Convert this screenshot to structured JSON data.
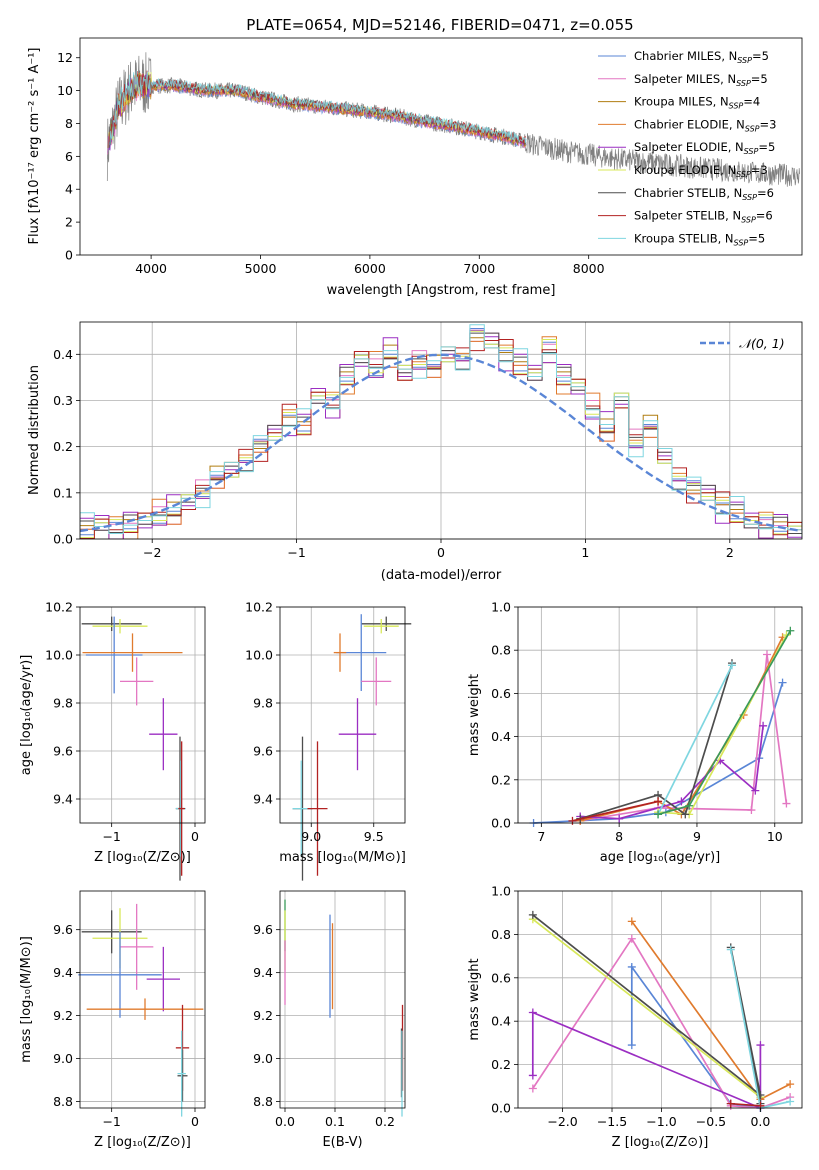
{
  "chart_data": [
    {
      "type": "line",
      "title": "PLATE=0654, MJD=52146, FIBERID=0471, z=0.055",
      "xlabel": "wavelength [Angstrom, rest frame]",
      "ylabel": "Flux [fλ10⁻¹⁷ erg cm⁻² s⁻¹ A⁻¹]",
      "xlim": [
        3350,
        9950
      ],
      "ylim": [
        0,
        13.2
      ],
      "xticks": [
        "4000",
        "5000",
        "6000",
        "7000",
        "8000"
      ],
      "xtick_values": [
        4000,
        5000,
        6000,
        7000,
        8000
      ],
      "yticks": [
        "0",
        "2",
        "4",
        "6",
        "8",
        "10",
        "12"
      ],
      "ytick_values": [
        0,
        2,
        4,
        6,
        8,
        10,
        12
      ],
      "grid": false,
      "legend_position": "top-right",
      "data_series": {
        "name": "data",
        "color": "#808080",
        "x_start": 3600,
        "x_end": 9930,
        "points": [
          [
            3600,
            6.5
          ],
          [
            3700,
            9.0
          ],
          [
            3800,
            10.0
          ],
          [
            3900,
            10.4
          ],
          [
            4000,
            10.3
          ],
          [
            4200,
            10.3
          ],
          [
            4500,
            10.0
          ],
          [
            4800,
            10.0
          ],
          [
            5000,
            9.6
          ],
          [
            5300,
            9.2
          ],
          [
            5600,
            9.0
          ],
          [
            6000,
            8.7
          ],
          [
            6300,
            8.4
          ],
          [
            6500,
            8.1
          ],
          [
            6700,
            7.9
          ],
          [
            7000,
            7.5
          ],
          [
            7300,
            7.1
          ],
          [
            7500,
            6.7
          ],
          [
            7800,
            6.3
          ],
          [
            8000,
            6.1
          ],
          [
            8300,
            5.8
          ],
          [
            8600,
            5.6
          ],
          [
            9000,
            5.3
          ],
          [
            9500,
            5.0
          ],
          [
            9930,
            4.8
          ]
        ]
      },
      "legend": [
        {
          "label": "Chabrier MILES, N",
          "sub": "SSP",
          "suffix": "=5",
          "color": "#5a86d6"
        },
        {
          "label": "Salpeter MILES, N",
          "sub": "SSP",
          "suffix": "=5",
          "color": "#e377c2"
        },
        {
          "label": "Kroupa MILES, N",
          "sub": "SSP",
          "suffix": "=4",
          "color": "#b07d10"
        },
        {
          "label": "Chabrier ELODIE, N",
          "sub": "SSP",
          "suffix": "=3",
          "color": "#e07b2e"
        },
        {
          "label": "Salpeter ELODIE, N",
          "sub": "SSP",
          "suffix": "=5",
          "color": "#9b2ec2"
        },
        {
          "label": "Kroupa ELODIE, N",
          "sub": "SSP",
          "suffix": "=3",
          "color": "#d8e85a"
        },
        {
          "label": "Chabrier STELIB, N",
          "sub": "SSP",
          "suffix": "=6",
          "color": "#4d4d4d"
        },
        {
          "label": "Salpeter STELIB, N",
          "sub": "SSP",
          "suffix": "=6",
          "color": "#b22222"
        },
        {
          "label": "Kroupa STELIB, N",
          "sub": "SSP",
          "suffix": "=5",
          "color": "#7fd6e0"
        }
      ]
    },
    {
      "type": "bar",
      "xlabel": "(data-model)/error",
      "ylabel": "Normed distribution",
      "xlim": [
        -2.5,
        2.5
      ],
      "ylim": [
        0,
        0.47
      ],
      "xticks": [
        "−2",
        "−1",
        "0",
        "1",
        "2"
      ],
      "xtick_values": [
        -2,
        -1,
        0,
        1,
        2
      ],
      "yticks": [
        "0.0",
        "0.1",
        "0.2",
        "0.3",
        "0.4"
      ],
      "ytick_values": [
        0,
        0.1,
        0.2,
        0.3,
        0.4
      ],
      "grid": true,
      "legend_position": "top-right",
      "legend": [
        {
          "label": "𝒩(0, 1)",
          "style": "dashed",
          "color": "#5a86d6"
        }
      ],
      "reference_curve": "normal(0,1) pdf",
      "bin_width": 0.1,
      "series": [
        {
          "name": "",
          "color": "#5a86d6",
          "offset": 0.0
        },
        {
          "name": "",
          "color": "#e377c2",
          "offset": 0.012
        },
        {
          "name": "",
          "color": "#b07d10",
          "offset": -0.012
        },
        {
          "name": "",
          "color": "#e07b2e",
          "offset": 0.02
        },
        {
          "name": "",
          "color": "#9b2ec2",
          "offset": -0.02
        },
        {
          "name": "",
          "color": "#d8e85a",
          "offset": 0.006
        },
        {
          "name": "",
          "color": "#4d4d4d",
          "offset": -0.006
        },
        {
          "name": "",
          "color": "#b22222",
          "offset": 0.016
        },
        {
          "name": "",
          "color": "#7fd6e0",
          "offset": -0.016
        }
      ],
      "base_values": [
        0.025,
        0.035,
        0.02,
        0.03,
        0.04,
        0.05,
        0.06,
        0.08,
        0.1,
        0.13,
        0.15,
        0.17,
        0.2,
        0.23,
        0.26,
        0.25,
        0.31,
        0.29,
        0.35,
        0.39,
        0.37,
        0.4,
        0.36,
        0.38,
        0.37,
        0.4,
        0.39,
        0.44,
        0.43,
        0.4,
        0.38,
        0.36,
        0.41,
        0.35,
        0.33,
        0.28,
        0.24,
        0.3,
        0.21,
        0.24,
        0.18,
        0.13,
        0.11,
        0.1,
        0.07,
        0.06,
        0.04,
        0.03,
        0.025,
        0.02
      ]
    },
    {
      "type": "scatter",
      "xlabel": "Z [log₁₀(Z/Z⊙)]",
      "ylabel": "age  [log₁₀(age/yr)]",
      "xlim": [
        -1.38,
        0.12
      ],
      "ylim": [
        9.3,
        10.2
      ],
      "xticks": [
        "−1",
        "0"
      ],
      "xtick_values": [
        -1,
        0
      ],
      "yticks": [
        "9.4",
        "9.6",
        "9.8",
        "10.0",
        "10.2"
      ],
      "ytick_values": [
        9.4,
        9.6,
        9.8,
        10.0,
        10.2
      ],
      "grid": true,
      "errorbars": [
        {
          "x": -1.0,
          "y": 10.13,
          "xerr": 0.36,
          "yerr": 0.03,
          "color": "#4d4d4d"
        },
        {
          "x": -0.9,
          "y": 10.12,
          "xerr": 0.33,
          "yerr": 0.03,
          "color": "#d8e85a"
        },
        {
          "x": -0.97,
          "y": 10.0,
          "xerr": 0.34,
          "yerr": 0.16,
          "color": "#5a86d6"
        },
        {
          "x": -0.75,
          "y": 10.01,
          "xerr": 0.6,
          "yerr": 0.08,
          "color": "#e07b2e"
        },
        {
          "x": -0.7,
          "y": 9.89,
          "xerr": 0.2,
          "yerr": 0.1,
          "color": "#e377c2"
        },
        {
          "x": -0.38,
          "y": 9.67,
          "xerr": 0.17,
          "yerr": 0.15,
          "color": "#9b2ec2"
        },
        {
          "x": -0.18,
          "y": 9.36,
          "xerr": 0.05,
          "yerr": 0.3,
          "color": "#4d4d4d"
        },
        {
          "x": -0.17,
          "y": 9.36,
          "xerr": 0.06,
          "yerr": 0.2,
          "color": "#7fd6e0"
        },
        {
          "x": -0.16,
          "y": 9.36,
          "xerr": 0.04,
          "yerr": 0.28,
          "color": "#b22222"
        }
      ]
    },
    {
      "type": "scatter",
      "xlabel": "mass [log₁₀(M/M⊙)]",
      "ylabel": "",
      "xlim": [
        8.75,
        9.75
      ],
      "ylim": [
        9.3,
        10.2
      ],
      "xticks": [
        "9.0",
        "9.5"
      ],
      "xtick_values": [
        9.0,
        9.5
      ],
      "yticks": [
        "9.4",
        "9.6",
        "9.8",
        "10.0",
        "10.2"
      ],
      "ytick_values": [
        9.4,
        9.6,
        9.8,
        10.0,
        10.2
      ],
      "grid": true,
      "errorbars": [
        {
          "x": 9.6,
          "y": 10.13,
          "xerr": 0.2,
          "yerr": 0.03,
          "color": "#4d4d4d"
        },
        {
          "x": 9.56,
          "y": 10.12,
          "xerr": 0.14,
          "yerr": 0.03,
          "color": "#d8e85a"
        },
        {
          "x": 9.4,
          "y": 10.01,
          "xerr": 0.2,
          "yerr": 0.16,
          "color": "#5a86d6"
        },
        {
          "x": 9.23,
          "y": 10.01,
          "xerr": 0.05,
          "yerr": 0.08,
          "color": "#e07b2e"
        },
        {
          "x": 9.52,
          "y": 9.89,
          "xerr": 0.12,
          "yerr": 0.1,
          "color": "#e377c2"
        },
        {
          "x": 9.37,
          "y": 9.67,
          "xerr": 0.15,
          "yerr": 0.15,
          "color": "#9b2ec2"
        },
        {
          "x": 8.93,
          "y": 9.36,
          "xerr": 0.08,
          "yerr": 0.3,
          "color": "#4d4d4d"
        },
        {
          "x": 8.92,
          "y": 9.36,
          "xerr": 0.07,
          "yerr": 0.2,
          "color": "#7fd6e0"
        },
        {
          "x": 9.05,
          "y": 9.36,
          "xerr": 0.08,
          "yerr": 0.28,
          "color": "#b22222"
        }
      ]
    },
    {
      "type": "line",
      "xlabel": "age  [log₁₀(age/yr)]",
      "ylabel": "mass weight",
      "xlim": [
        6.7,
        10.35
      ],
      "ylim": [
        0,
        1.0
      ],
      "xticks": [
        "7",
        "8",
        "9",
        "10"
      ],
      "xtick_values": [
        7,
        8,
        9,
        10
      ],
      "yticks": [
        "0.0",
        "0.2",
        "0.4",
        "0.6",
        "0.8",
        "1.0"
      ],
      "ytick_values": [
        0,
        0.2,
        0.4,
        0.6,
        0.8,
        1.0
      ],
      "grid": true,
      "series": [
        {
          "name": "",
          "color": "#5a86d6",
          "x": [
            6.9,
            8.0,
            8.6,
            9.8,
            10.1
          ],
          "y": [
            0.0,
            0.02,
            0.05,
            0.3,
            0.65
          ]
        },
        {
          "name": "",
          "color": "#e377c2",
          "x": [
            7.5,
            8.5,
            9.7,
            9.9,
            10.15
          ],
          "y": [
            0.01,
            0.07,
            0.06,
            0.78,
            0.09
          ]
        },
        {
          "name": "",
          "color": "#e07b2e",
          "x": [
            7.5,
            8.5,
            8.8,
            9.6,
            10.1
          ],
          "y": [
            0.01,
            0.1,
            0.04,
            0.5,
            0.86
          ]
        },
        {
          "name": "",
          "color": "#9b2ec2",
          "x": [
            7.5,
            8.0,
            8.8,
            9.3,
            9.75,
            9.85
          ],
          "y": [
            0.03,
            0.02,
            0.1,
            0.29,
            0.15,
            0.45
          ]
        },
        {
          "name": "",
          "color": "#d8e85a",
          "x": [
            8.5,
            8.9,
            10.15
          ],
          "y": [
            0.05,
            0.04,
            0.87
          ]
        },
        {
          "name": "",
          "color": "#4d4d4d",
          "x": [
            7.5,
            8.5,
            8.85,
            9.45
          ],
          "y": [
            0.02,
            0.13,
            0.04,
            0.74
          ]
        },
        {
          "name": "",
          "color": "#b22222",
          "x": [
            7.4,
            8.5
          ],
          "y": [
            0.01,
            0.1
          ]
        },
        {
          "name": "",
          "color": "#7fd6e0",
          "x": [
            8.5,
            9.45
          ],
          "y": [
            0.04,
            0.73
          ]
        },
        {
          "name": "",
          "color": "#3a9a5a",
          "x": [
            8.5,
            8.9,
            10.2
          ],
          "y": [
            0.04,
            0.08,
            0.89
          ]
        }
      ]
    },
    {
      "type": "scatter",
      "xlabel": "Z [log₁₀(Z/Z⊙)]",
      "ylabel": "mass [log₁₀(M/M⊙)]",
      "xlim": [
        -1.38,
        0.12
      ],
      "ylim": [
        8.77,
        9.78
      ],
      "xticks": [
        "−1",
        "0"
      ],
      "xtick_values": [
        -1,
        0
      ],
      "yticks": [
        "8.8",
        "9.0",
        "9.2",
        "9.4",
        "9.6"
      ],
      "ytick_values": [
        8.8,
        9.0,
        9.2,
        9.4,
        9.6
      ],
      "grid": true,
      "errorbars": [
        {
          "x": -1.0,
          "y": 9.59,
          "xerr": 0.36,
          "yerr": 0.1,
          "color": "#4d4d4d"
        },
        {
          "x": -0.9,
          "y": 9.56,
          "xerr": 0.33,
          "yerr": 0.14,
          "color": "#d8e85a"
        },
        {
          "x": -0.7,
          "y": 9.52,
          "xerr": 0.2,
          "yerr": 0.2,
          "color": "#e377c2"
        },
        {
          "x": -0.9,
          "y": 9.39,
          "xerr": 0.5,
          "yerr": 0.2,
          "color": "#5a86d6"
        },
        {
          "x": -0.38,
          "y": 9.37,
          "xerr": 0.2,
          "yerr": 0.15,
          "color": "#9b2ec2"
        },
        {
          "x": -0.6,
          "y": 9.23,
          "xerr": 0.7,
          "yerr": 0.05,
          "color": "#e07b2e"
        },
        {
          "x": -0.15,
          "y": 9.05,
          "xerr": 0.08,
          "yerr": 0.2,
          "color": "#b22222"
        },
        {
          "x": -0.15,
          "y": 8.92,
          "xerr": 0.06,
          "yerr": 0.12,
          "color": "#4d4d4d"
        },
        {
          "x": -0.16,
          "y": 8.93,
          "xerr": 0.05,
          "yerr": 0.2,
          "color": "#7fd6e0"
        }
      ]
    },
    {
      "type": "scatter",
      "xlabel": "E(B-V)",
      "ylabel": "",
      "xlim": [
        -0.01,
        0.24
      ],
      "ylim": [
        8.77,
        9.78
      ],
      "xticks": [
        "0.0",
        "0.1",
        "0.2"
      ],
      "xtick_values": [
        0,
        0.1,
        0.2
      ],
      "yticks": [
        "8.8",
        "9.0",
        "9.2",
        "9.4",
        "9.6"
      ],
      "ytick_values": [
        8.8,
        9.0,
        9.2,
        9.4,
        9.6
      ],
      "grid": true,
      "errorbars": [
        {
          "x": 0.0,
          "y": 9.62,
          "xerr": 0,
          "yerr": 0.12,
          "color": "#3a9a5a"
        },
        {
          "x": 0.0,
          "y": 9.55,
          "xerr": 0,
          "yerr": 0.14,
          "color": "#d8e85a"
        },
        {
          "x": 0.0,
          "y": 9.4,
          "xerr": 0,
          "yerr": 0.15,
          "color": "#e377c2"
        },
        {
          "x": 0.09,
          "y": 9.43,
          "xerr": 0,
          "yerr": 0.24,
          "color": "#5a86d6"
        },
        {
          "x": 0.095,
          "y": 9.43,
          "xerr": 0,
          "yerr": 0.2,
          "color": "#e07b2e"
        },
        {
          "x": 0.235,
          "y": 9.05,
          "xerr": 0,
          "yerr": 0.2,
          "color": "#b22222"
        },
        {
          "x": 0.233,
          "y": 8.98,
          "xerr": 0,
          "yerr": 0.16,
          "color": "#4d4d4d"
        },
        {
          "x": 0.234,
          "y": 8.93,
          "xerr": 0,
          "yerr": 0.2,
          "color": "#7fd6e0"
        }
      ]
    },
    {
      "type": "line",
      "xlabel": "Z [log₁₀(Z/Z⊙)]",
      "ylabel": "mass weight",
      "xlim": [
        -2.45,
        0.42
      ],
      "ylim": [
        0,
        1.0
      ],
      "xticks": [
        "−2.0",
        "−1.5",
        "−1.0",
        "−0.5",
        "0.0"
      ],
      "xtick_values": [
        -2.0,
        -1.5,
        -1.0,
        -0.5,
        0.0
      ],
      "yticks": [
        "0.0",
        "0.2",
        "0.4",
        "0.6",
        "0.8",
        "1.0"
      ],
      "ytick_values": [
        0,
        0.2,
        0.4,
        0.6,
        0.8,
        1.0
      ],
      "grid": true,
      "series": [
        {
          "name": "",
          "color": "#5a86d6",
          "x": [
            -1.3,
            -1.3,
            -0.3,
            0.0,
            0.0
          ],
          "y": [
            0.29,
            0.65,
            0.02,
            0.0,
            0.05
          ]
        },
        {
          "name": "",
          "color": "#e377c2",
          "x": [
            -2.3,
            -1.3,
            -0.3,
            0.0,
            0.3
          ],
          "y": [
            0.09,
            0.78,
            0.01,
            0.0,
            0.05
          ]
        },
        {
          "name": "",
          "color": "#e07b2e",
          "x": [
            -1.3,
            0.0,
            0.3
          ],
          "y": [
            0.86,
            0.04,
            0.11
          ]
        },
        {
          "name": "",
          "color": "#9b2ec2",
          "x": [
            -2.3,
            -2.3,
            0.0,
            0.0
          ],
          "y": [
            0.15,
            0.44,
            0.0,
            0.29
          ]
        },
        {
          "name": "",
          "color": "#d8e85a",
          "x": [
            -2.3,
            0.0
          ],
          "y": [
            0.87,
            0.05
          ]
        },
        {
          "name": "",
          "color": "#4d4d4d",
          "x": [
            -2.3,
            0.0,
            -0.3,
            0.0
          ],
          "y": [
            0.89,
            0.06,
            0.74,
            0.02
          ]
        },
        {
          "name": "",
          "color": "#7fd6e0",
          "x": [
            -0.3,
            0.0,
            0.3
          ],
          "y": [
            0.73,
            0.0,
            0.03
          ]
        },
        {
          "name": "",
          "color": "#b22222",
          "x": [
            -0.3,
            0.0
          ],
          "y": [
            0.02,
            0.01
          ]
        }
      ]
    }
  ]
}
